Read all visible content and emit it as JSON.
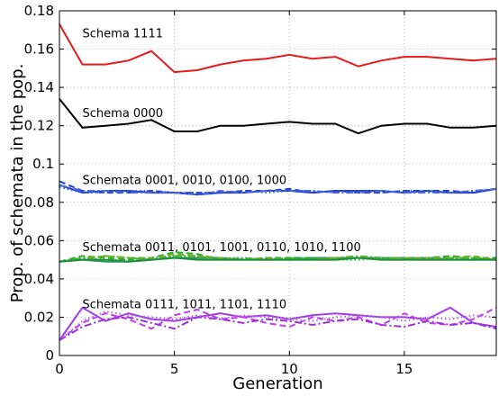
{
  "chart_data": {
    "type": "line",
    "xlabel": "Generation",
    "ylabel": "Prop. of schemata in the pop.",
    "xlim": [
      0,
      19
    ],
    "ylim": [
      0,
      0.18
    ],
    "xticks": [
      0,
      5,
      10,
      15
    ],
    "yticks": [
      0,
      0.02,
      0.04,
      0.06,
      0.08,
      0.1,
      0.12,
      0.14,
      0.16,
      0.18
    ],
    "grid": true,
    "x": [
      0,
      1,
      2,
      3,
      4,
      5,
      6,
      7,
      8,
      9,
      10,
      11,
      12,
      13,
      14,
      15,
      16,
      17,
      18,
      19
    ],
    "annotations": [
      {
        "text": "Schema 1111",
        "x": 1,
        "y": 0.168
      },
      {
        "text": "Schema 0000",
        "x": 1,
        "y": 0.1265
      },
      {
        "text": "Schemata 0001, 0010, 0100, 1000",
        "x": 1,
        "y": 0.0915
      },
      {
        "text": "Schemata 0011, 0101, 1001, 0110, 1010, 1100",
        "x": 1,
        "y": 0.0565
      },
      {
        "text": "Schemata 0111, 1011, 1101, 1110",
        "x": 1,
        "y": 0.0265
      }
    ],
    "series": [
      {
        "color": "#e8191b",
        "dash": "solid",
        "values": [
          0.173,
          0.152,
          0.152,
          0.154,
          0.159,
          0.148,
          0.149,
          0.152,
          0.154,
          0.155,
          0.157,
          0.155,
          0.156,
          0.151,
          0.154,
          0.156,
          0.156,
          0.155,
          0.154,
          0.155
        ]
      },
      {
        "color": "#000000",
        "dash": "solid",
        "values": [
          0.134,
          0.119,
          0.12,
          0.121,
          0.123,
          0.117,
          0.117,
          0.12,
          0.12,
          0.121,
          0.122,
          0.121,
          0.121,
          0.116,
          0.12,
          0.121,
          0.121,
          0.119,
          0.119,
          0.12
        ]
      },
      {
        "color": "#1f3fd6",
        "dash": "solid",
        "values": [
          0.089,
          0.085,
          0.086,
          0.086,
          0.085,
          0.085,
          0.084,
          0.085,
          0.085,
          0.086,
          0.086,
          0.085,
          0.086,
          0.086,
          0.086,
          0.085,
          0.086,
          0.085,
          0.085,
          0.087
        ]
      },
      {
        "color": "#1f3fd6",
        "dash": "dashed",
        "values": [
          0.091,
          0.086,
          0.085,
          0.085,
          0.086,
          0.085,
          0.085,
          0.085,
          0.086,
          0.086,
          0.087,
          0.085,
          0.086,
          0.085,
          0.085,
          0.086,
          0.086,
          0.086,
          0.085,
          0.087
        ]
      },
      {
        "color": "#4a6ae0",
        "dash": "dashdot",
        "values": [
          0.089,
          0.086,
          0.086,
          0.085,
          0.085,
          0.085,
          0.084,
          0.086,
          0.085,
          0.086,
          0.086,
          0.086,
          0.085,
          0.085,
          0.086,
          0.085,
          0.085,
          0.085,
          0.086,
          0.087
        ]
      },
      {
        "color": "#3a58d8",
        "dash": "dotted",
        "values": [
          0.088,
          0.085,
          0.085,
          0.086,
          0.086,
          0.085,
          0.085,
          0.085,
          0.086,
          0.085,
          0.086,
          0.086,
          0.085,
          0.086,
          0.085,
          0.086,
          0.086,
          0.085,
          0.086,
          0.087
        ]
      },
      {
        "color": "#2e9a5e",
        "dash": "solid",
        "values": [
          0.049,
          0.05,
          0.049,
          0.049,
          0.05,
          0.051,
          0.051,
          0.051,
          0.05,
          0.05,
          0.05,
          0.051,
          0.051,
          0.051,
          0.051,
          0.051,
          0.051,
          0.05,
          0.05,
          0.05
        ]
      },
      {
        "color": "#22b022",
        "dash": "dashed",
        "values": [
          0.049,
          0.052,
          0.051,
          0.05,
          0.051,
          0.054,
          0.053,
          0.05,
          0.05,
          0.051,
          0.051,
          0.051,
          0.05,
          0.051,
          0.051,
          0.05,
          0.051,
          0.052,
          0.051,
          0.051
        ]
      },
      {
        "color": "#4cbf2a",
        "dash": "dashdot",
        "values": [
          0.049,
          0.051,
          0.052,
          0.051,
          0.05,
          0.052,
          0.052,
          0.05,
          0.051,
          0.05,
          0.051,
          0.05,
          0.051,
          0.052,
          0.051,
          0.051,
          0.05,
          0.051,
          0.051,
          0.05
        ]
      },
      {
        "color": "#2aa84a",
        "dash": "dotted",
        "values": [
          0.049,
          0.051,
          0.05,
          0.05,
          0.051,
          0.052,
          0.051,
          0.051,
          0.051,
          0.05,
          0.051,
          0.051,
          0.05,
          0.05,
          0.051,
          0.051,
          0.051,
          0.051,
          0.05,
          0.051
        ]
      },
      {
        "color": "#6fae2a",
        "dash": "dashed",
        "values": [
          0.049,
          0.05,
          0.052,
          0.051,
          0.051,
          0.053,
          0.052,
          0.051,
          0.05,
          0.051,
          0.05,
          0.05,
          0.051,
          0.051,
          0.05,
          0.051,
          0.051,
          0.051,
          0.052,
          0.05
        ]
      },
      {
        "color": "#1e8e3e",
        "dash": "solid",
        "values": [
          0.049,
          0.05,
          0.05,
          0.049,
          0.05,
          0.051,
          0.05,
          0.05,
          0.05,
          0.05,
          0.05,
          0.05,
          0.05,
          0.051,
          0.05,
          0.05,
          0.05,
          0.05,
          0.05,
          0.05
        ]
      },
      {
        "color": "#a23ce8",
        "dash": "solid",
        "values": [
          0.008,
          0.025,
          0.018,
          0.022,
          0.019,
          0.018,
          0.02,
          0.022,
          0.02,
          0.021,
          0.019,
          0.021,
          0.022,
          0.021,
          0.02,
          0.02,
          0.019,
          0.025,
          0.017,
          0.015
        ]
      },
      {
        "color": "#c040f0",
        "dash": "dashed",
        "values": [
          0.008,
          0.017,
          0.022,
          0.019,
          0.014,
          0.021,
          0.024,
          0.019,
          0.02,
          0.017,
          0.015,
          0.02,
          0.018,
          0.02,
          0.016,
          0.022,
          0.017,
          0.016,
          0.019,
          0.025
        ]
      },
      {
        "color": "#9a30d8",
        "dash": "dashdot",
        "values": [
          0.008,
          0.015,
          0.019,
          0.02,
          0.017,
          0.014,
          0.02,
          0.019,
          0.017,
          0.019,
          0.018,
          0.016,
          0.018,
          0.019,
          0.016,
          0.015,
          0.018,
          0.016,
          0.017,
          0.014
        ]
      },
      {
        "color": "#b860f0",
        "dash": "dotted",
        "values": [
          0.008,
          0.018,
          0.023,
          0.021,
          0.02,
          0.019,
          0.021,
          0.019,
          0.021,
          0.02,
          0.019,
          0.018,
          0.02,
          0.021,
          0.02,
          0.018,
          0.02,
          0.019,
          0.021,
          0.02
        ]
      }
    ]
  }
}
